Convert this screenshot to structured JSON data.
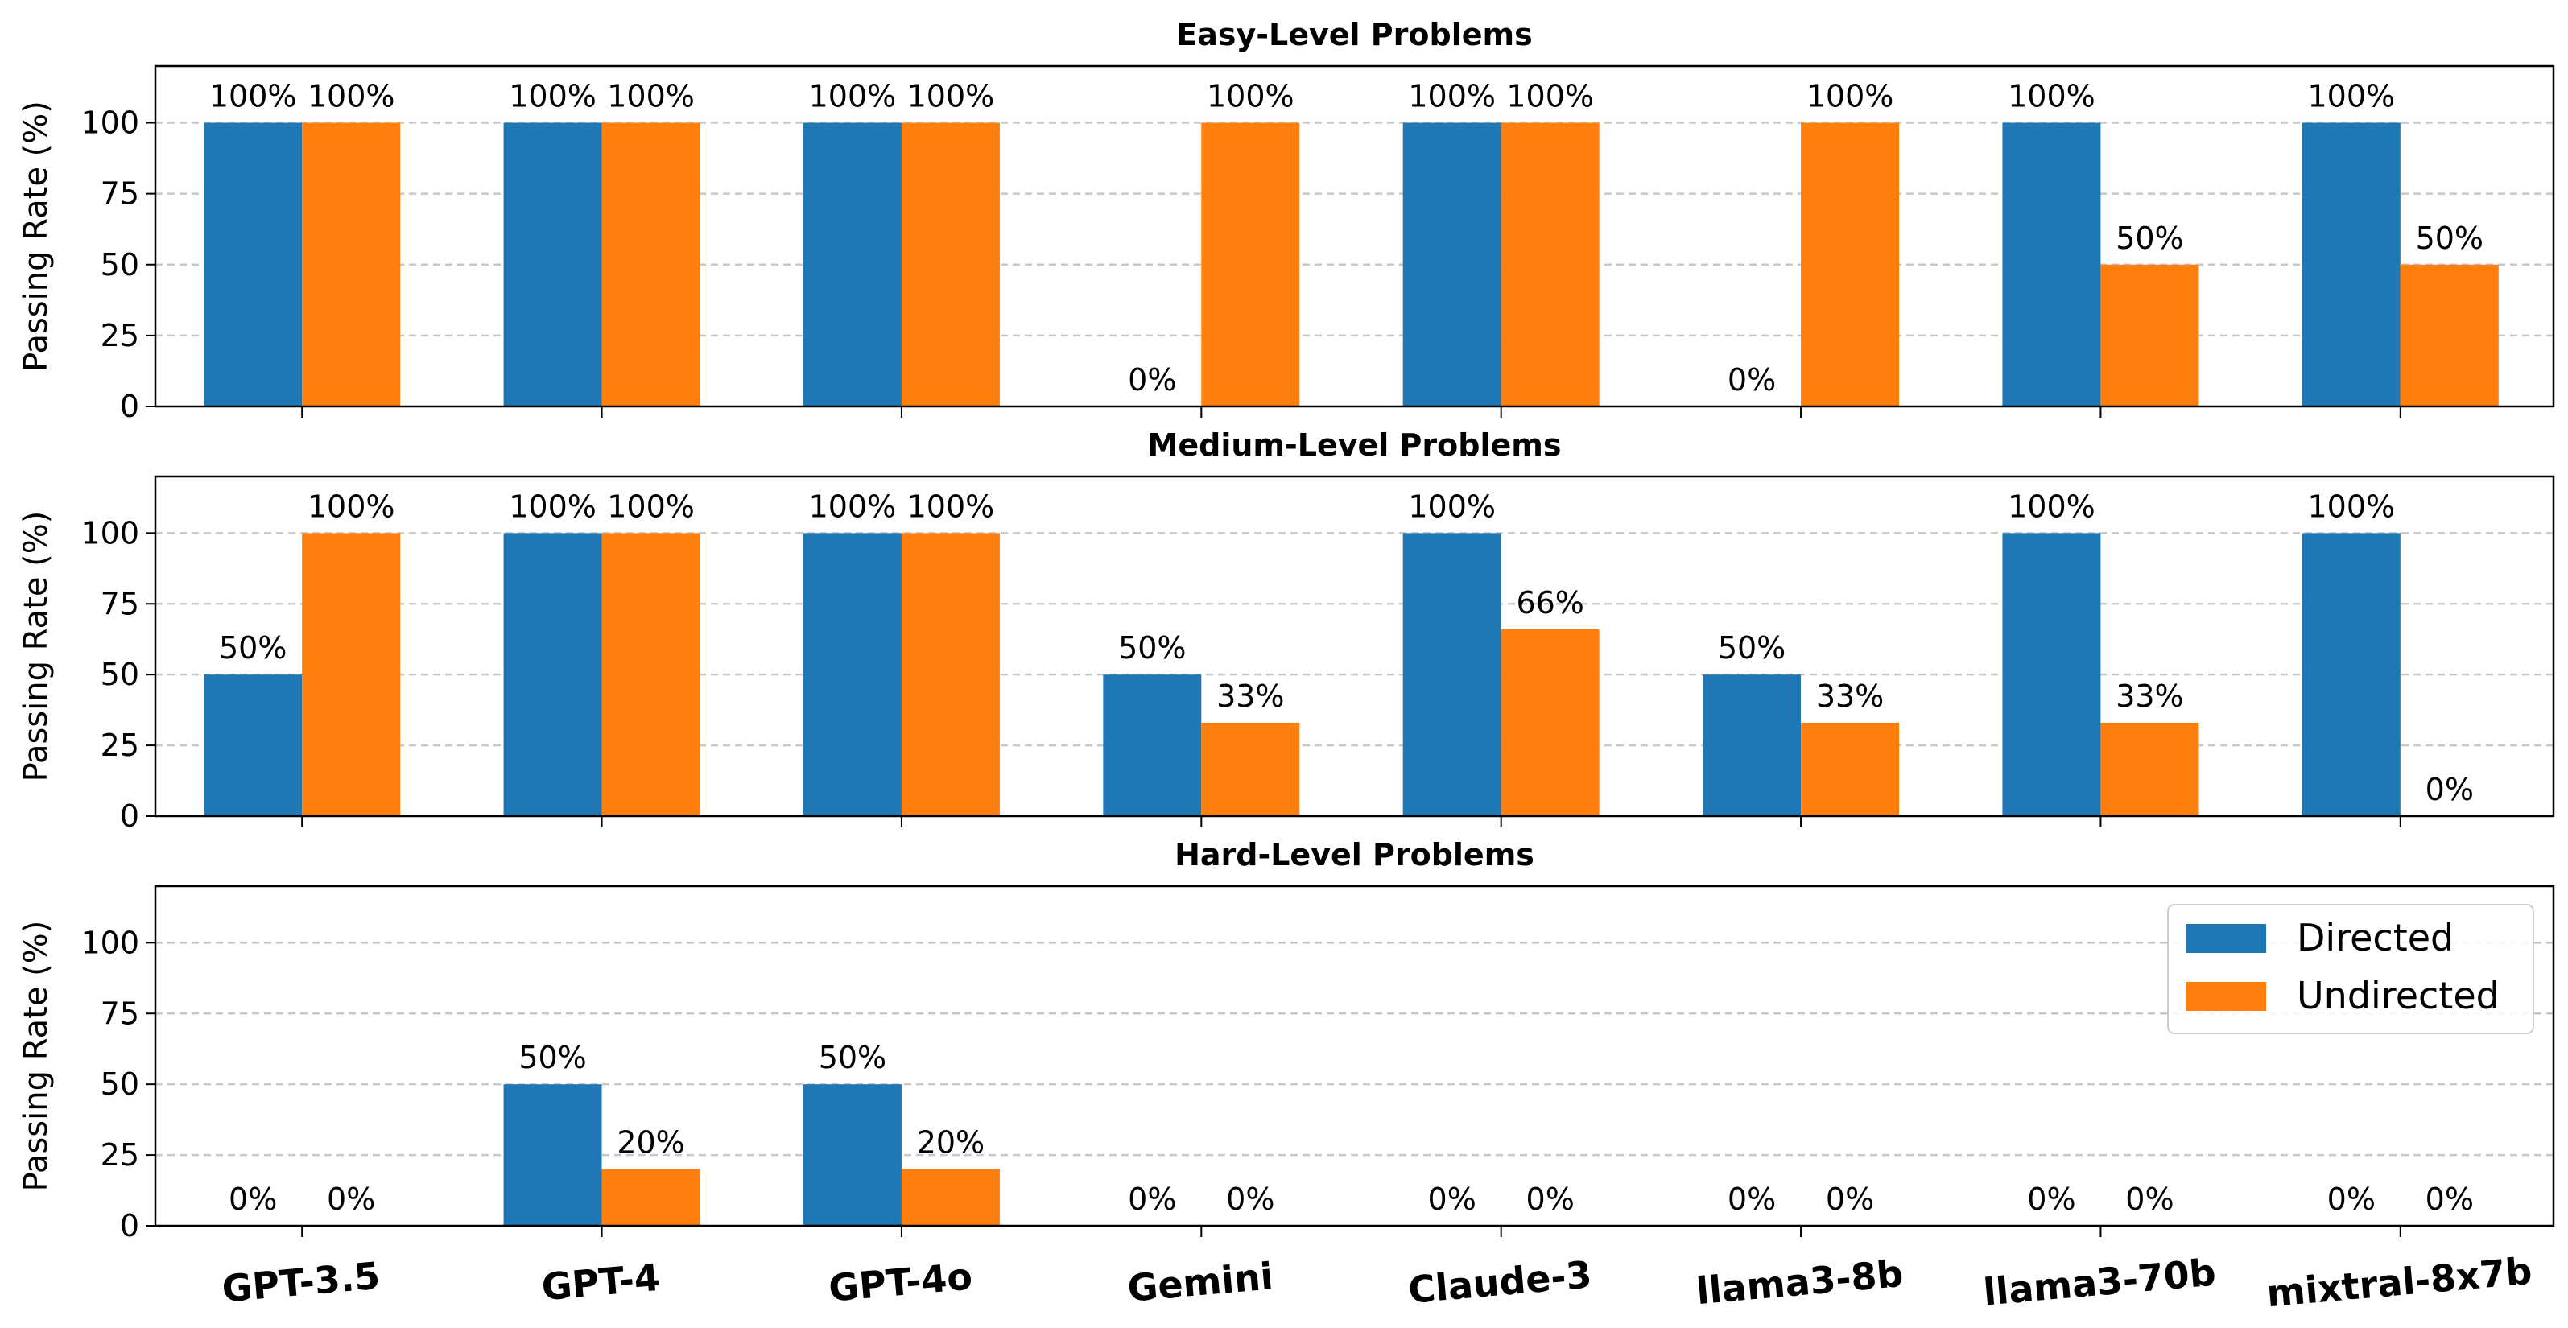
{
  "chart_data": {
    "type": "bar",
    "categories": [
      "GPT-3.5",
      "GPT-4",
      "GPT-4o",
      "Gemini",
      "Claude-3",
      "llama3-8b",
      "llama3-70b",
      "mixtral-8x7b"
    ],
    "ylabel": "Passing Rate (%)",
    "ylim": [
      0,
      120
    ],
    "yticks": [
      "0",
      "25",
      "50",
      "75",
      "100"
    ],
    "grid": "y-dashed",
    "legend_position": "right",
    "colors": {
      "Directed": "#1f77b4",
      "Undirected": "#ff7f0e"
    },
    "panels": [
      {
        "title": "Easy-Level Problems",
        "series": [
          {
            "name": "Directed",
            "values": [
              100,
              100,
              100,
              0,
              100,
              0,
              100,
              100
            ],
            "labels": [
              "100%",
              "100%",
              "100%",
              "0%",
              "100%",
              "0%",
              "100%",
              "100%"
            ]
          },
          {
            "name": "Undirected",
            "values": [
              100,
              100,
              100,
              100,
              100,
              100,
              50,
              50
            ],
            "labels": [
              "100%",
              "100%",
              "100%",
              "100%",
              "100%",
              "100%",
              "50%",
              "50%"
            ]
          }
        ]
      },
      {
        "title": "Medium-Level Problems",
        "series": [
          {
            "name": "Directed",
            "values": [
              50,
              100,
              100,
              50,
              100,
              50,
              100,
              100
            ],
            "labels": [
              "50%",
              "100%",
              "100%",
              "50%",
              "100%",
              "50%",
              "100%",
              "100%"
            ]
          },
          {
            "name": "Undirected",
            "values": [
              100,
              100,
              100,
              33,
              66,
              33,
              33,
              0
            ],
            "labels": [
              "100%",
              "100%",
              "100%",
              "33%",
              "66%",
              "33%",
              "33%",
              "0%"
            ]
          }
        ]
      },
      {
        "title": "Hard-Level Problems",
        "series": [
          {
            "name": "Directed",
            "values": [
              0,
              50,
              50,
              0,
              0,
              0,
              0,
              0
            ],
            "labels": [
              "0%",
              "50%",
              "50%",
              "0%",
              "0%",
              "0%",
              "0%",
              "0%"
            ]
          },
          {
            "name": "Undirected",
            "values": [
              0,
              20,
              20,
              0,
              0,
              0,
              0,
              0
            ],
            "labels": [
              "0%",
              "20%",
              "20%",
              "0%",
              "0%",
              "0%",
              "0%",
              "0%"
            ]
          }
        ]
      }
    ],
    "legend": [
      "Directed",
      "Undirected"
    ]
  }
}
